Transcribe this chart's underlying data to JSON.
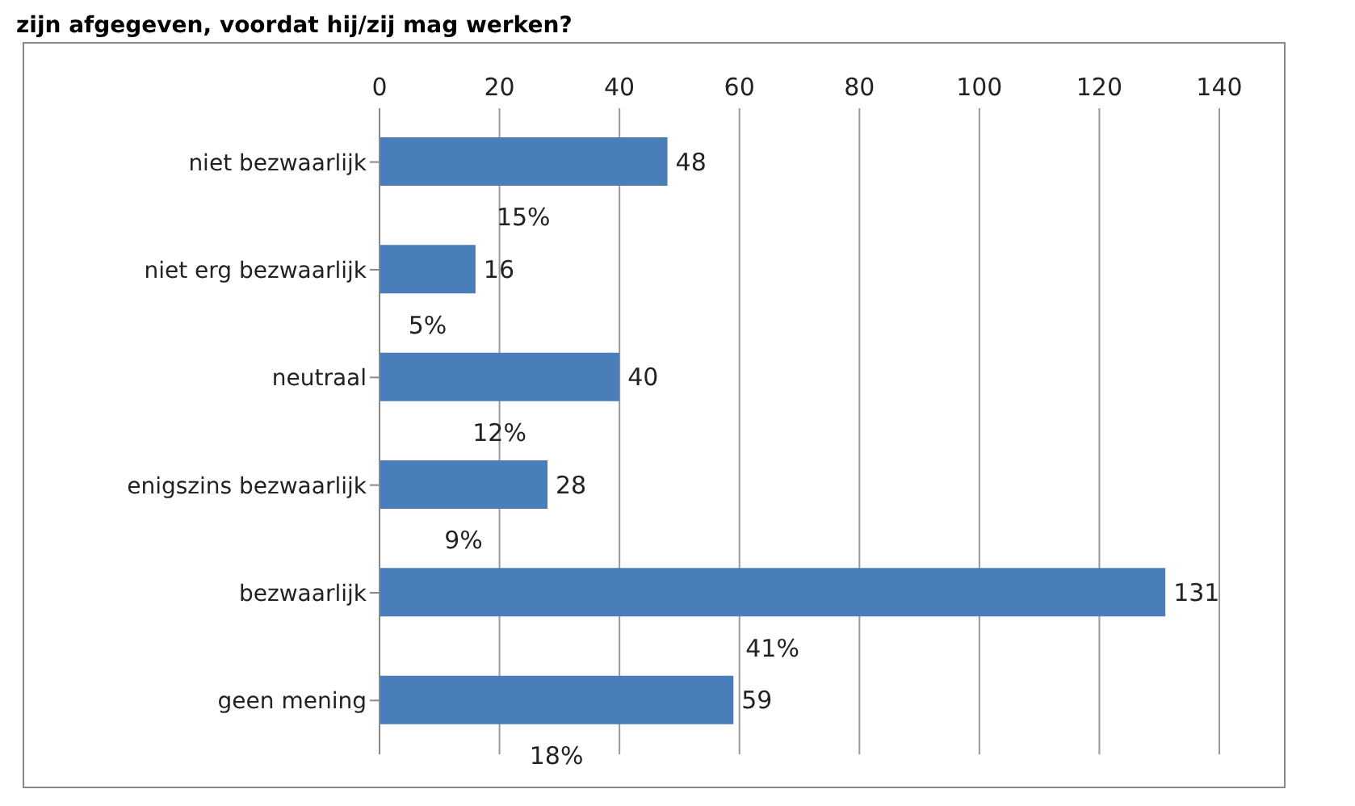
{
  "chart_data": {
    "type": "bar",
    "orientation": "horizontal",
    "title": "zijn afgegeven, voordat hij/zij mag werken?",
    "categories": [
      "niet bezwaarlijk",
      "niet erg bezwaarlijk",
      "neutraal",
      "enigszins bezwaarlijk",
      "bezwaarlijk",
      "geen mening"
    ],
    "values": [
      48,
      16,
      40,
      28,
      131,
      59
    ],
    "color": "#4a7ebb",
    "xlim": [
      0,
      140
    ],
    "xticks": [
      0,
      20,
      40,
      60,
      80,
      100,
      120,
      140
    ],
    "grid": "x",
    "data_labels": true,
    "annotations": [
      "15%",
      "5%",
      "12%",
      "9%",
      "41%",
      "18%"
    ]
  }
}
